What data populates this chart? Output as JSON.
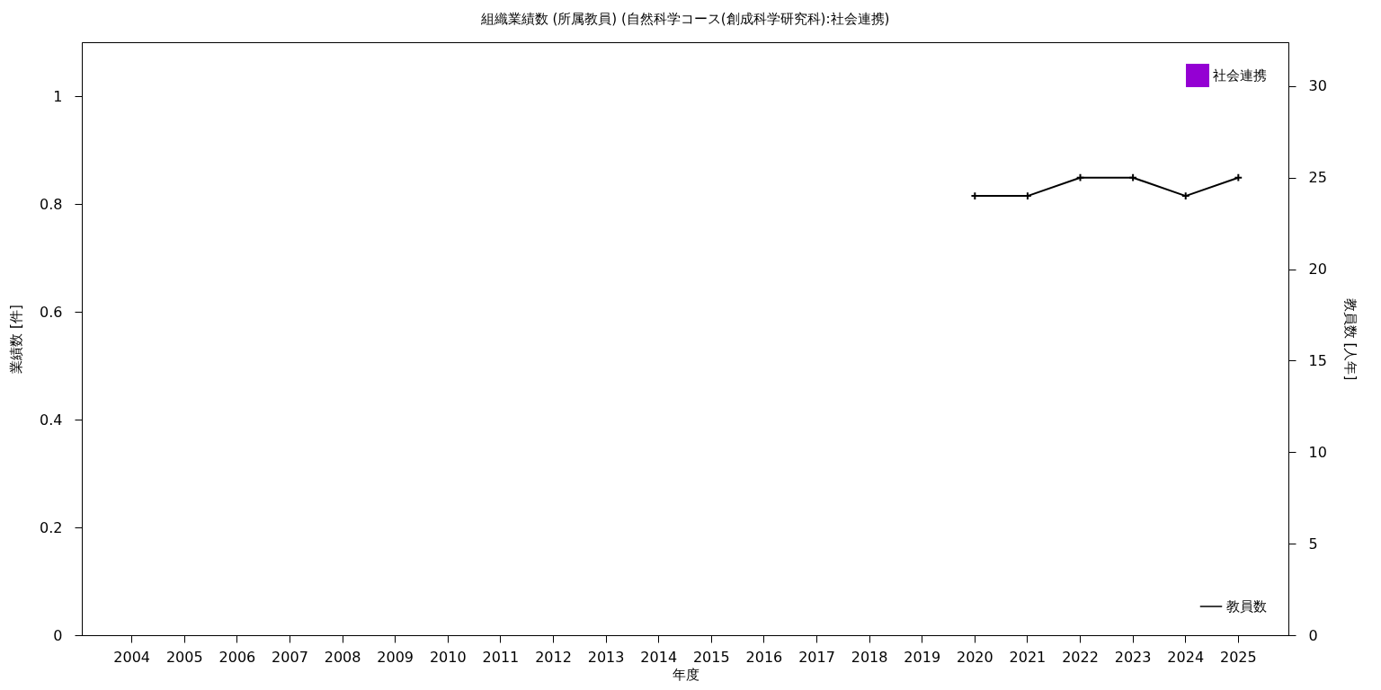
{
  "chart_data": {
    "type": "bar",
    "title": "組織業績数 (所属教員) (自然科学コース(創成科学研究科):社会連携)",
    "xlabel": "年度",
    "ylabel": "業績数 [件]",
    "y2label": "教員数 [人年]",
    "categories": [
      "2004",
      "2005",
      "2006",
      "2007",
      "2008",
      "2009",
      "2010",
      "2011",
      "2012",
      "2013",
      "2014",
      "2015",
      "2016",
      "2017",
      "2018",
      "2019",
      "2020",
      "2021",
      "2022",
      "2023",
      "2024",
      "2025"
    ],
    "series": [
      {
        "name": "社会連携",
        "color": "#9400d3",
        "values": [
          null,
          null,
          null,
          null,
          null,
          null,
          null,
          null,
          null,
          null,
          null,
          null,
          0,
          0,
          0,
          0,
          0,
          0,
          0,
          0,
          0,
          0
        ]
      },
      {
        "name": "教員数",
        "type": "line",
        "axis": "y2",
        "color": "#000000",
        "marker": "cross",
        "values": [
          null,
          null,
          null,
          null,
          null,
          null,
          null,
          null,
          null,
          null,
          null,
          null,
          null,
          null,
          null,
          null,
          24,
          24,
          25,
          25,
          24,
          25
        ]
      }
    ],
    "ylim": [
      0,
      1.1
    ],
    "yticks": [
      0,
      0.2,
      0.4,
      0.6,
      0.8,
      1
    ],
    "y2lim": [
      0,
      32.4
    ],
    "y2ticks": [
      0,
      5,
      10,
      15,
      20,
      25,
      30
    ],
    "grid": false,
    "legend": "top right"
  }
}
